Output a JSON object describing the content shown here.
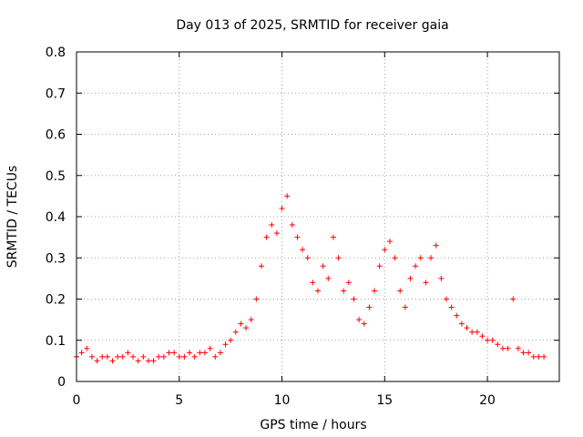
{
  "chart_data": {
    "type": "scatter",
    "title": "Day 013 of 2025, SRMTID for receiver gaia",
    "xlabel": "GPS time / hours",
    "ylabel": "SRMTID / TECUs",
    "xlim": [
      0,
      23.5
    ],
    "ylim": [
      0,
      0.8
    ],
    "xticks": [
      0,
      5,
      10,
      15,
      20
    ],
    "xtick_labels": [
      "0",
      "5",
      "10",
      "15",
      "20"
    ],
    "yticks": [
      0,
      0.1,
      0.2,
      0.3,
      0.4,
      0.5,
      0.6,
      0.7,
      0.8
    ],
    "ytick_labels": [
      "0",
      "0.1",
      "0.2",
      "0.3",
      "0.4",
      "0.5",
      "0.6",
      "0.7",
      "0.8"
    ],
    "grid": true,
    "marker": "+",
    "color": "#ff0000",
    "series": [
      {
        "name": "SRMTID",
        "x": [
          0.0,
          0.25,
          0.5,
          0.75,
          1.0,
          1.25,
          1.5,
          1.75,
          2.0,
          2.25,
          2.5,
          2.75,
          3.0,
          3.25,
          3.5,
          3.75,
          4.0,
          4.25,
          4.5,
          4.75,
          5.0,
          5.25,
          5.5,
          5.75,
          6.0,
          6.25,
          6.5,
          6.75,
          7.0,
          7.25,
          7.5,
          7.75,
          8.0,
          8.25,
          8.5,
          8.75,
          9.0,
          9.25,
          9.5,
          9.75,
          10.0,
          10.25,
          10.5,
          10.75,
          11.0,
          11.25,
          11.5,
          11.75,
          12.0,
          12.25,
          12.5,
          12.75,
          13.0,
          13.25,
          13.5,
          13.75,
          14.0,
          14.25,
          14.5,
          14.75,
          15.0,
          15.25,
          15.5,
          15.75,
          16.0,
          16.25,
          16.5,
          16.75,
          17.0,
          17.25,
          17.5,
          17.75,
          18.0,
          18.25,
          18.5,
          18.75,
          19.0,
          19.25,
          19.5,
          19.75,
          20.0,
          20.25,
          20.5,
          20.75,
          21.0,
          21.25,
          21.5,
          21.75,
          22.0,
          22.25,
          22.5,
          22.75
        ],
        "y": [
          0.06,
          0.07,
          0.08,
          0.06,
          0.05,
          0.06,
          0.06,
          0.05,
          0.06,
          0.06,
          0.07,
          0.06,
          0.05,
          0.06,
          0.05,
          0.05,
          0.06,
          0.06,
          0.07,
          0.07,
          0.06,
          0.06,
          0.07,
          0.06,
          0.07,
          0.07,
          0.08,
          0.06,
          0.07,
          0.09,
          0.1,
          0.12,
          0.14,
          0.13,
          0.15,
          0.2,
          0.28,
          0.35,
          0.38,
          0.36,
          0.42,
          0.45,
          0.38,
          0.35,
          0.32,
          0.3,
          0.24,
          0.22,
          0.28,
          0.25,
          0.35,
          0.3,
          0.22,
          0.24,
          0.2,
          0.15,
          0.14,
          0.18,
          0.22,
          0.28,
          0.32,
          0.34,
          0.3,
          0.22,
          0.18,
          0.25,
          0.28,
          0.3,
          0.24,
          0.3,
          0.33,
          0.25,
          0.2,
          0.18,
          0.16,
          0.14,
          0.13,
          0.12,
          0.12,
          0.11,
          0.1,
          0.1,
          0.09,
          0.08,
          0.08,
          0.2,
          0.08,
          0.07,
          0.07,
          0.06,
          0.06,
          0.06
        ]
      }
    ]
  }
}
